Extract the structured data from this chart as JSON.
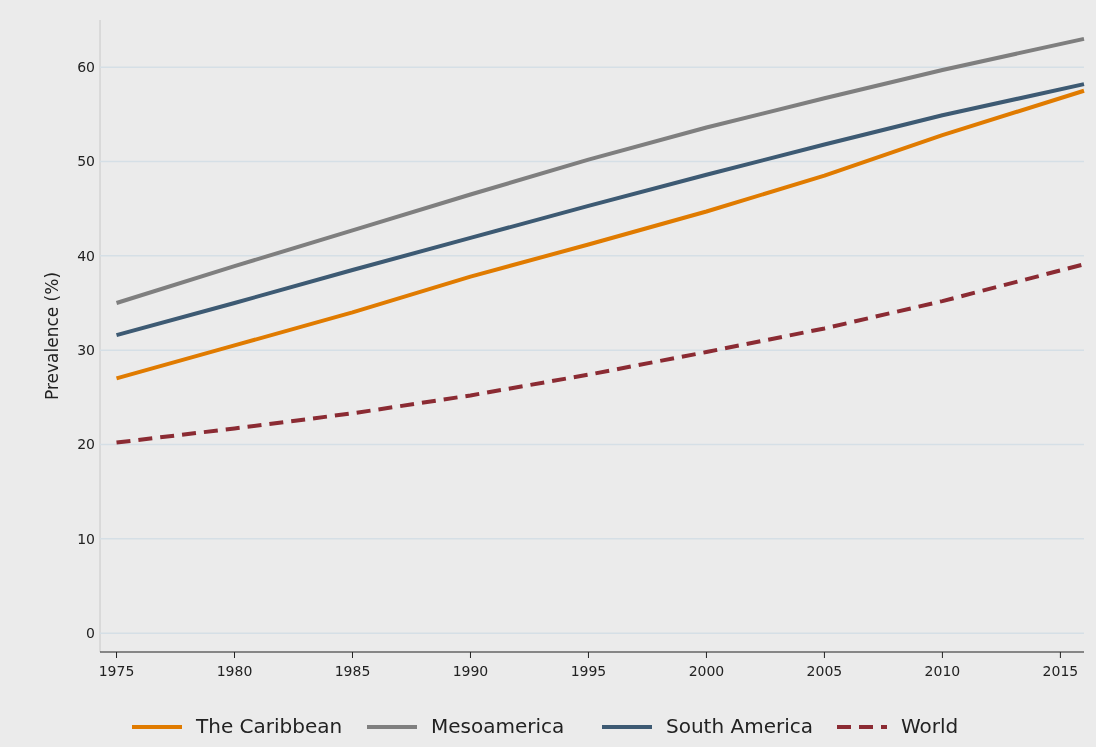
{
  "chart_data": {
    "type": "line",
    "ylabel": "Prevalence (%)",
    "x": [
      1975,
      1980,
      1985,
      1990,
      1995,
      2000,
      2005,
      2010,
      2016
    ],
    "series": [
      {
        "name": "The Caribbean",
        "color": "#e07b00",
        "values": [
          27,
          30.5,
          34,
          37.8,
          41.2,
          44.7,
          48.5,
          52.8,
          57.5
        ]
      },
      {
        "name": "Mesoamerica",
        "color": "#7f7f7f",
        "values": [
          35,
          38.9,
          42.7,
          46.5,
          50.2,
          53.6,
          56.7,
          59.7,
          63
        ]
      },
      {
        "name": "South America",
        "color": "#3d5a73",
        "values": [
          31.6,
          35,
          38.5,
          41.9,
          45.3,
          48.6,
          51.8,
          54.9,
          58.2
        ]
      },
      {
        "name": "World",
        "color": "#8b2b33",
        "values": [
          20.2,
          21.7,
          23.3,
          25.2,
          27.4,
          29.8,
          32.3,
          35.2,
          39.1
        ],
        "line_style": "dashed"
      }
    ],
    "xlim": [
      1974.3,
      2016
    ],
    "xticks": [
      1975,
      1980,
      1985,
      1990,
      1995,
      2000,
      2005,
      2010,
      2015
    ],
    "ylim": [
      -2,
      65
    ],
    "yticks": [
      0,
      10,
      20,
      30,
      40,
      50,
      60
    ],
    "grid": "y",
    "legend": "bottom",
    "line_style": "solid"
  }
}
